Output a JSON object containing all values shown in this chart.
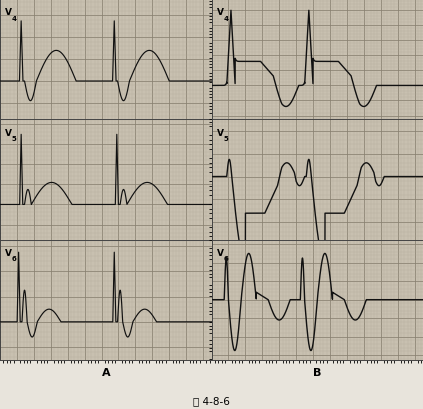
{
  "title": "图 4-8-6",
  "panel_A_label": "A",
  "panel_B_label": "B",
  "lead_labels_A": [
    "V4",
    "V5",
    "V6"
  ],
  "lead_labels_B": [
    "V4",
    "V5",
    "V6"
  ],
  "bg_color": "#c8c0b0",
  "grid_major_color": "#888070",
  "grid_minor_color": "#b0a898",
  "ecg_color": "#111111",
  "fig_bg": "#e8e4dc",
  "fig_width": 4.23,
  "fig_height": 4.1,
  "dpi": 100
}
